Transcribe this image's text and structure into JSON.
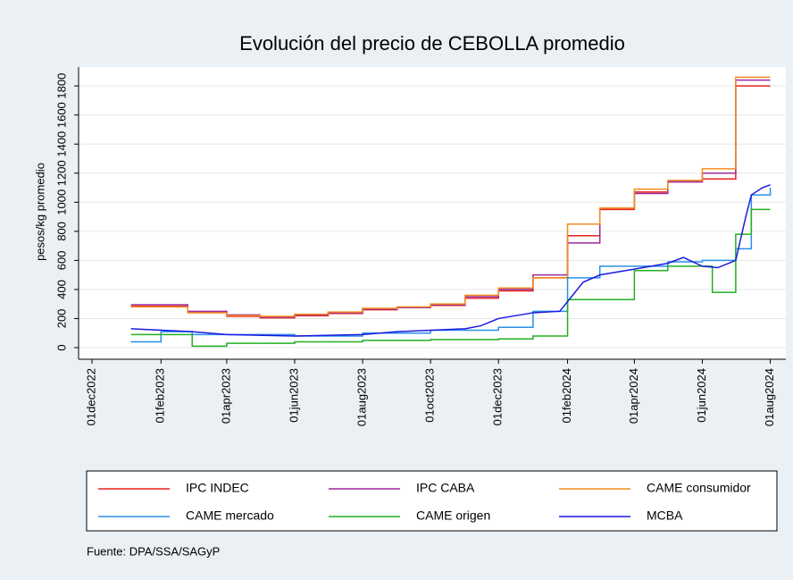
{
  "chart_data": {
    "type": "line",
    "title": "Evolución del precio de CEBOLLA promedio",
    "ylabel": "pesos/kg promedio",
    "source": "Fuente: DPA/SSA/SAGyP",
    "ylim": [
      -80,
      1930
    ],
    "yticks": [
      0,
      200,
      400,
      600,
      800,
      1000,
      1200,
      1400,
      1600,
      1800
    ],
    "xlim": [
      "2022-11-19",
      "2024-08-15"
    ],
    "xticks": [
      {
        "value": "2022-12-01",
        "label": "01dec2022"
      },
      {
        "value": "2023-02-01",
        "label": "01feb2023"
      },
      {
        "value": "2023-04-01",
        "label": "01apr2023"
      },
      {
        "value": "2023-06-01",
        "label": "01jun2023"
      },
      {
        "value": "2023-08-01",
        "label": "01aug2023"
      },
      {
        "value": "2023-10-01",
        "label": "01oct2023"
      },
      {
        "value": "2023-12-01",
        "label": "01dec2023"
      },
      {
        "value": "2024-02-01",
        "label": "01feb2024"
      },
      {
        "value": "2024-04-01",
        "label": "01apr2024"
      },
      {
        "value": "2024-06-01",
        "label": "01jun2024"
      },
      {
        "value": "2024-08-01",
        "label": "01aug2024"
      }
    ],
    "grid": true,
    "series": [
      {
        "name": "IPC INDEC",
        "color": "#e8201c",
        "step": true,
        "x": [
          "2023-01-05",
          "2023-02-25",
          "2023-04-01",
          "2023-05-01",
          "2023-06-01",
          "2023-07-01",
          "2023-08-01",
          "2023-09-01",
          "2023-10-01",
          "2023-11-01",
          "2023-12-01",
          "2024-01-01",
          "2024-02-01",
          "2024-03-01",
          "2024-04-01",
          "2024-05-01",
          "2024-06-01",
          "2024-07-01",
          "2024-08-01"
        ],
        "values": [
          285,
          245,
          215,
          205,
          220,
          235,
          260,
          275,
          290,
          340,
          390,
          480,
          770,
          950,
          1070,
          1140,
          1160,
          1800,
          1800
        ]
      },
      {
        "name": "IPC CABA",
        "color": "#9b2a9b",
        "step": true,
        "x": [
          "2023-01-05",
          "2023-02-25",
          "2023-04-01",
          "2023-05-01",
          "2023-06-01",
          "2023-07-01",
          "2023-08-01",
          "2023-09-01",
          "2023-10-01",
          "2023-11-01",
          "2023-12-01",
          "2024-01-01",
          "2024-02-01",
          "2024-03-01",
          "2024-04-01",
          "2024-05-01",
          "2024-06-01",
          "2024-07-01",
          "2024-08-01"
        ],
        "values": [
          295,
          250,
          225,
          210,
          225,
          240,
          265,
          275,
          295,
          350,
          400,
          500,
          720,
          960,
          1060,
          1140,
          1200,
          1840,
          1840
        ]
      },
      {
        "name": "CAME consumidor",
        "color": "#f48c1e",
        "step": true,
        "x": [
          "2023-01-05",
          "2023-02-25",
          "2023-04-01",
          "2023-05-01",
          "2023-06-01",
          "2023-07-01",
          "2023-08-01",
          "2023-09-01",
          "2023-10-01",
          "2023-11-01",
          "2023-12-01",
          "2024-01-01",
          "2024-02-01",
          "2024-03-01",
          "2024-04-01",
          "2024-05-01",
          "2024-06-01",
          "2024-07-01",
          "2024-08-01"
        ],
        "values": [
          280,
          240,
          220,
          215,
          230,
          245,
          270,
          280,
          300,
          360,
          410,
          480,
          850,
          960,
          1090,
          1150,
          1230,
          1860,
          1860
        ]
      },
      {
        "name": "CAME mercado",
        "color": "#2b8fe8",
        "step": true,
        "x": [
          "2023-01-05",
          "2023-02-01",
          "2023-03-01",
          "2023-06-01",
          "2023-08-01",
          "2023-10-01",
          "2023-12-01",
          "2024-01-01",
          "2024-02-01",
          "2024-03-01",
          "2024-05-01",
          "2024-06-01",
          "2024-07-01",
          "2024-07-15",
          "2024-08-01"
        ],
        "values": [
          40,
          110,
          90,
          80,
          100,
          120,
          140,
          250,
          480,
          560,
          590,
          600,
          680,
          1050,
          1100
        ]
      },
      {
        "name": "CAME origen",
        "color": "#22b022",
        "step": true,
        "x": [
          "2023-01-05",
          "2023-03-01",
          "2023-04-01",
          "2023-06-01",
          "2023-08-01",
          "2023-10-01",
          "2023-12-01",
          "2024-01-01",
          "2024-02-01",
          "2024-04-01",
          "2024-05-01",
          "2024-06-10",
          "2024-07-01",
          "2024-07-15",
          "2024-08-01"
        ],
        "values": [
          90,
          10,
          30,
          40,
          50,
          55,
          60,
          80,
          330,
          530,
          560,
          380,
          780,
          950,
          950
        ]
      },
      {
        "name": "MCBA",
        "color": "#1a1ae0",
        "step": false,
        "x": [
          "2023-01-05",
          "2023-03-01",
          "2023-04-01",
          "2023-06-01",
          "2023-08-01",
          "2023-09-01",
          "2023-11-01",
          "2023-11-15",
          "2023-12-01",
          "2024-01-01",
          "2024-01-25",
          "2024-02-15",
          "2024-03-01",
          "2024-04-01",
          "2024-05-01",
          "2024-05-15",
          "2024-06-01",
          "2024-06-15",
          "2024-07-01",
          "2024-07-10",
          "2024-07-15",
          "2024-07-25",
          "2024-08-01"
        ],
        "values": [
          130,
          110,
          90,
          80,
          90,
          110,
          130,
          150,
          200,
          240,
          250,
          450,
          500,
          540,
          580,
          620,
          560,
          550,
          600,
          900,
          1050,
          1100,
          1120
        ]
      }
    ]
  }
}
